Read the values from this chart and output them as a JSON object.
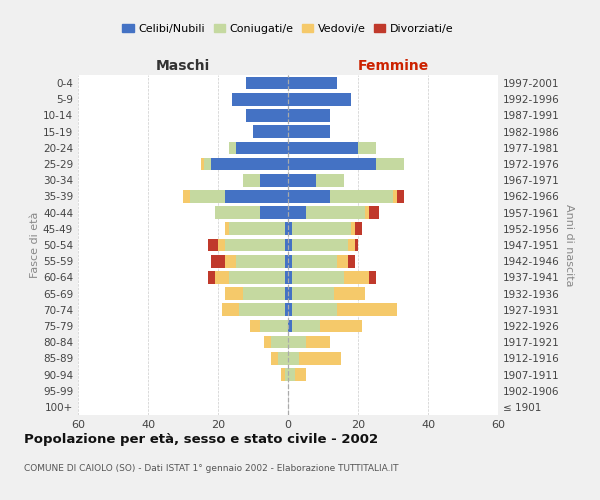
{
  "age_groups": [
    "100+",
    "95-99",
    "90-94",
    "85-89",
    "80-84",
    "75-79",
    "70-74",
    "65-69",
    "60-64",
    "55-59",
    "50-54",
    "45-49",
    "40-44",
    "35-39",
    "30-34",
    "25-29",
    "20-24",
    "15-19",
    "10-14",
    "5-9",
    "0-4"
  ],
  "birth_years": [
    "≤ 1901",
    "1902-1906",
    "1907-1911",
    "1912-1916",
    "1917-1921",
    "1922-1926",
    "1927-1931",
    "1932-1936",
    "1937-1941",
    "1942-1946",
    "1947-1951",
    "1952-1956",
    "1957-1961",
    "1962-1966",
    "1967-1971",
    "1972-1976",
    "1977-1981",
    "1982-1986",
    "1987-1991",
    "1992-1996",
    "1997-2001"
  ],
  "male_celibi": [
    0,
    0,
    0,
    0,
    0,
    0,
    1,
    1,
    1,
    1,
    1,
    1,
    8,
    18,
    8,
    22,
    15,
    10,
    12,
    16,
    12
  ],
  "male_coniugati": [
    0,
    0,
    1,
    3,
    5,
    8,
    13,
    12,
    16,
    14,
    17,
    16,
    13,
    10,
    5,
    2,
    2,
    0,
    0,
    0,
    0
  ],
  "male_vedovi": [
    0,
    0,
    1,
    2,
    2,
    3,
    5,
    5,
    4,
    3,
    2,
    1,
    0,
    2,
    0,
    1,
    0,
    0,
    0,
    0,
    0
  ],
  "male_divorziati": [
    0,
    0,
    0,
    0,
    0,
    0,
    0,
    0,
    2,
    4,
    3,
    0,
    0,
    0,
    0,
    0,
    0,
    0,
    0,
    0,
    0
  ],
  "fem_nubili": [
    0,
    0,
    0,
    0,
    0,
    1,
    1,
    1,
    1,
    1,
    1,
    1,
    5,
    12,
    8,
    25,
    20,
    12,
    12,
    18,
    14
  ],
  "fem_coniugate": [
    0,
    0,
    2,
    3,
    5,
    8,
    13,
    12,
    15,
    13,
    16,
    17,
    17,
    18,
    8,
    8,
    5,
    0,
    0,
    0,
    0
  ],
  "fem_vedove": [
    0,
    0,
    3,
    12,
    7,
    12,
    17,
    9,
    7,
    3,
    2,
    1,
    1,
    1,
    0,
    0,
    0,
    0,
    0,
    0,
    0
  ],
  "fem_divorziate": [
    0,
    0,
    0,
    0,
    0,
    0,
    0,
    0,
    2,
    2,
    1,
    2,
    3,
    2,
    0,
    0,
    0,
    0,
    0,
    0,
    0
  ],
  "color_celibi": "#4472c4",
  "color_coniugati": "#c5d9a0",
  "color_vedovi": "#f5c96a",
  "color_divorziati": "#c0392b",
  "xlim": 60,
  "title": "Popolazione per età, sesso e stato civile - 2002",
  "subtitle": "COMUNE DI CAIOLO (SO) - Dati ISTAT 1° gennaio 2002 - Elaborazione TUTTITALIA.IT",
  "ylabel_left": "Fasce di età",
  "ylabel_right": "Anni di nascita",
  "header_maschi": "Maschi",
  "header_femmine": "Femmine",
  "legend_labels": [
    "Celibi/Nubili",
    "Coniugati/e",
    "Vedovi/e",
    "Divorziati/e"
  ],
  "bg_color": "#f0f0f0",
  "plot_bg_color": "#ffffff"
}
